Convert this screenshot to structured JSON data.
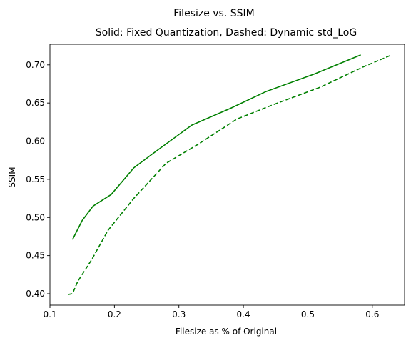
{
  "chart_data": {
    "type": "line",
    "suptitle": "Filesize vs. SSIM",
    "title": "Solid: Fixed Quantization, Dashed: Dynamic std_LoG",
    "xlabel": "Filesize as % of Original",
    "ylabel": "SSIM",
    "xlim": [
      0.1,
      0.65
    ],
    "ylim": [
      0.385,
      0.727
    ],
    "xticks": [
      0.1,
      0.2,
      0.3,
      0.4,
      0.5,
      0.6
    ],
    "xtick_labels": [
      "0.1",
      "0.2",
      "0.3",
      "0.4",
      "0.5",
      "0.6"
    ],
    "yticks": [
      0.4,
      0.45,
      0.5,
      0.55,
      0.6,
      0.65,
      0.7
    ],
    "ytick_labels": [
      "0.40",
      "0.45",
      "0.50",
      "0.55",
      "0.60",
      "0.65",
      "0.70"
    ],
    "grid": false,
    "legend": "none",
    "series": [
      {
        "style": "solid",
        "color": "#008000",
        "x": [
          0.135,
          0.15,
          0.167,
          0.195,
          0.23,
          0.265,
          0.32,
          0.38,
          0.435,
          0.51,
          0.582
        ],
        "y": [
          0.471,
          0.496,
          0.515,
          0.53,
          0.565,
          0.587,
          0.621,
          0.643,
          0.665,
          0.688,
          0.713
        ]
      },
      {
        "style": "dashed",
        "color": "#008000",
        "x": [
          0.128,
          0.135,
          0.143,
          0.165,
          0.19,
          0.23,
          0.28,
          0.33,
          0.39,
          0.45,
          0.52,
          0.585,
          0.63
        ],
        "y": [
          0.399,
          0.4,
          0.416,
          0.445,
          0.483,
          0.525,
          0.571,
          0.596,
          0.629,
          0.649,
          0.671,
          0.697,
          0.713
        ]
      }
    ]
  }
}
